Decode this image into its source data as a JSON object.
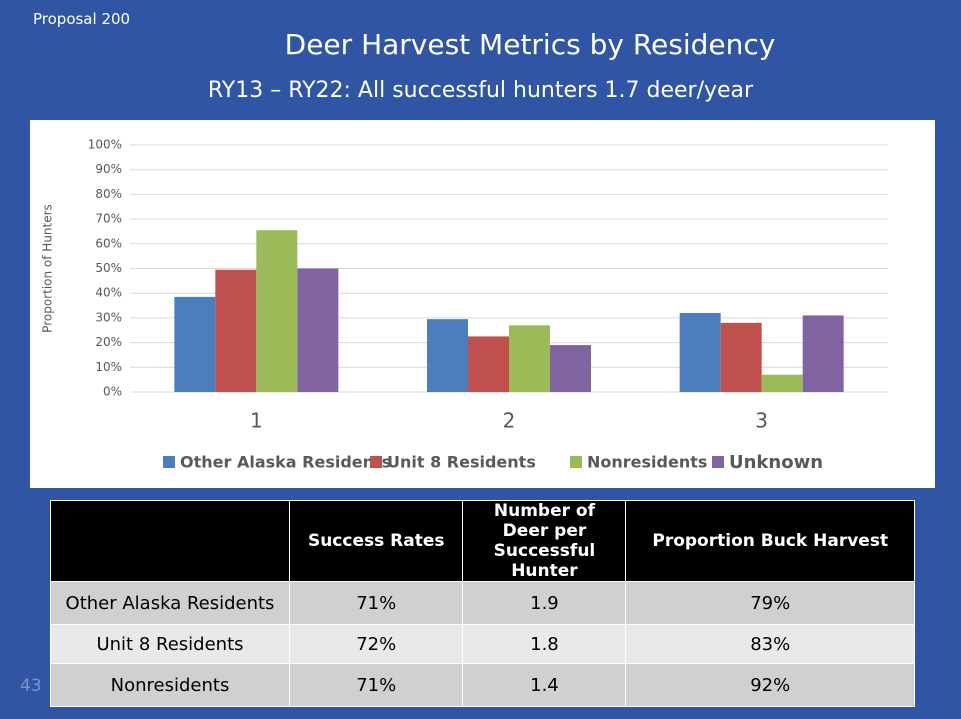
{
  "label": "Proposal 200",
  "chart_data": {
    "type": "bar",
    "title": "Deer Harvest Metrics by Residency",
    "subtitle": "RY13 – RY22: All successful hunters 1.7 deer/year",
    "y_label": "Proportion of Hunters",
    "categories": [
      "1",
      "2",
      "3"
    ],
    "series": [
      {
        "name": "Other Alaska Residents",
        "color": "#4a7ebf",
        "values": [
          38.5,
          29.5,
          32
        ]
      },
      {
        "name": "Unit 8 Residents",
        "color": "#c0504d",
        "values": [
          49.5,
          22.5,
          28
        ]
      },
      {
        "name": "Nonresidents",
        "color": "#9bbb59",
        "values": [
          65.5,
          27,
          7
        ]
      },
      {
        "name": "Unknown",
        "color": "#8064a2",
        "values": [
          50,
          19,
          31
        ]
      }
    ],
    "ylim": [
      0,
      100
    ],
    "yticks": [
      {
        "value": 0,
        "label": "0%"
      },
      {
        "value": 10,
        "label": "10%"
      },
      {
        "value": 20,
        "label": "20%"
      },
      {
        "value": 30,
        "label": "30%"
      },
      {
        "value": 40,
        "label": "40%"
      },
      {
        "value": 50,
        "label": "50%"
      },
      {
        "value": 60,
        "label": "60%"
      },
      {
        "value": 70,
        "label": "70%"
      },
      {
        "value": 80,
        "label": "80%"
      },
      {
        "value": 90,
        "label": "90%"
      },
      {
        "value": 100,
        "label": "100%"
      }
    ],
    "grid": true,
    "legend": "bottom"
  },
  "table": {
    "headers": [
      "Success Rates",
      "Number of Deer per Successful Hunter",
      "Proportion Buck Harvest"
    ],
    "rows": [
      [
        "Other Alaska Residents",
        "71%",
        "1.9",
        "79%"
      ],
      [
        "Unit 8 Residents",
        "72%",
        "1.8",
        "83%"
      ],
      [
        "Nonresidents",
        "71%",
        "1.4",
        "92%"
      ]
    ]
  },
  "page_number": "43"
}
